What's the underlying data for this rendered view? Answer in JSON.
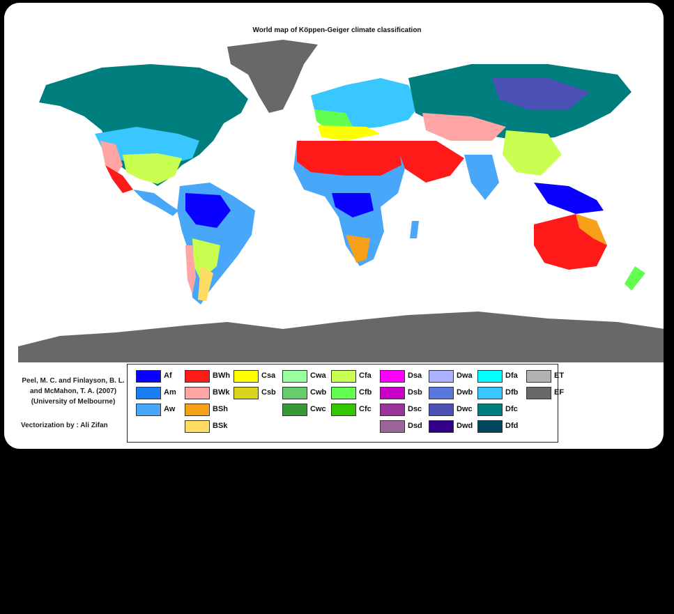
{
  "title": "World map of Köppen-Geiger climate classification",
  "credit": {
    "line1": "Peel, M. C. and Finlayson, B. L.",
    "line2": "and McMahon, T. A. (2007)",
    "line3": "(University of Melbourne)",
    "vectorization": "Vectorization by : Ali Zifan"
  },
  "legend": [
    {
      "code": "Af",
      "color": "#0a00ff",
      "col": 0,
      "row": 0
    },
    {
      "code": "Am",
      "color": "#1a7ef5",
      "col": 0,
      "row": 1
    },
    {
      "code": "Aw",
      "color": "#48a7f9",
      "col": 0,
      "row": 2
    },
    {
      "code": "BWh",
      "color": "#ff1a1a",
      "col": 1,
      "row": 0
    },
    {
      "code": "BWk",
      "color": "#ffa5a5",
      "col": 1,
      "row": 1
    },
    {
      "code": "BSh",
      "color": "#f7a11a",
      "col": 1,
      "row": 2
    },
    {
      "code": "BSk",
      "color": "#ffdb63",
      "col": 1,
      "row": 3
    },
    {
      "code": "Csa",
      "color": "#ffff00",
      "col": 2,
      "row": 0
    },
    {
      "code": "Csb",
      "color": "#d8d41a",
      "col": 2,
      "row": 1
    },
    {
      "code": "Cwa",
      "color": "#98ffa0",
      "col": 3,
      "row": 0
    },
    {
      "code": "Cwb",
      "color": "#67cc6d",
      "col": 3,
      "row": 1
    },
    {
      "code": "Cwc",
      "color": "#369933",
      "col": 3,
      "row": 2
    },
    {
      "code": "Cfa",
      "color": "#c8ff50",
      "col": 4,
      "row": 0
    },
    {
      "code": "Cfb",
      "color": "#63ff50",
      "col": 4,
      "row": 1
    },
    {
      "code": "Cfc",
      "color": "#33c700",
      "col": 4,
      "row": 2
    },
    {
      "code": "Dsa",
      "color": "#ff00ff",
      "col": 5,
      "row": 0
    },
    {
      "code": "Dsb",
      "color": "#c800c8",
      "col": 5,
      "row": 1
    },
    {
      "code": "Dsc",
      "color": "#9a339a",
      "col": 5,
      "row": 2
    },
    {
      "code": "Dsd",
      "color": "#9a669a",
      "col": 5,
      "row": 3
    },
    {
      "code": "Dwa",
      "color": "#aab1ff",
      "col": 6,
      "row": 0
    },
    {
      "code": "Dwb",
      "color": "#5a77db",
      "col": 6,
      "row": 1
    },
    {
      "code": "Dwc",
      "color": "#4c51b5",
      "col": 6,
      "row": 2
    },
    {
      "code": "Dwd",
      "color": "#320087",
      "col": 6,
      "row": 3
    },
    {
      "code": "Dfa",
      "color": "#00ffff",
      "col": 7,
      "row": 0
    },
    {
      "code": "Dfb",
      "color": "#38c7ff",
      "col": 7,
      "row": 1
    },
    {
      "code": "Dfc",
      "color": "#007e7d",
      "col": 7,
      "row": 2
    },
    {
      "code": "Dfd",
      "color": "#00455e",
      "col": 7,
      "row": 3
    },
    {
      "code": "ET",
      "color": "#b2b2b2",
      "col": 8,
      "row": 0
    },
    {
      "code": "EF",
      "color": "#686868",
      "col": 8,
      "row": 1
    }
  ]
}
